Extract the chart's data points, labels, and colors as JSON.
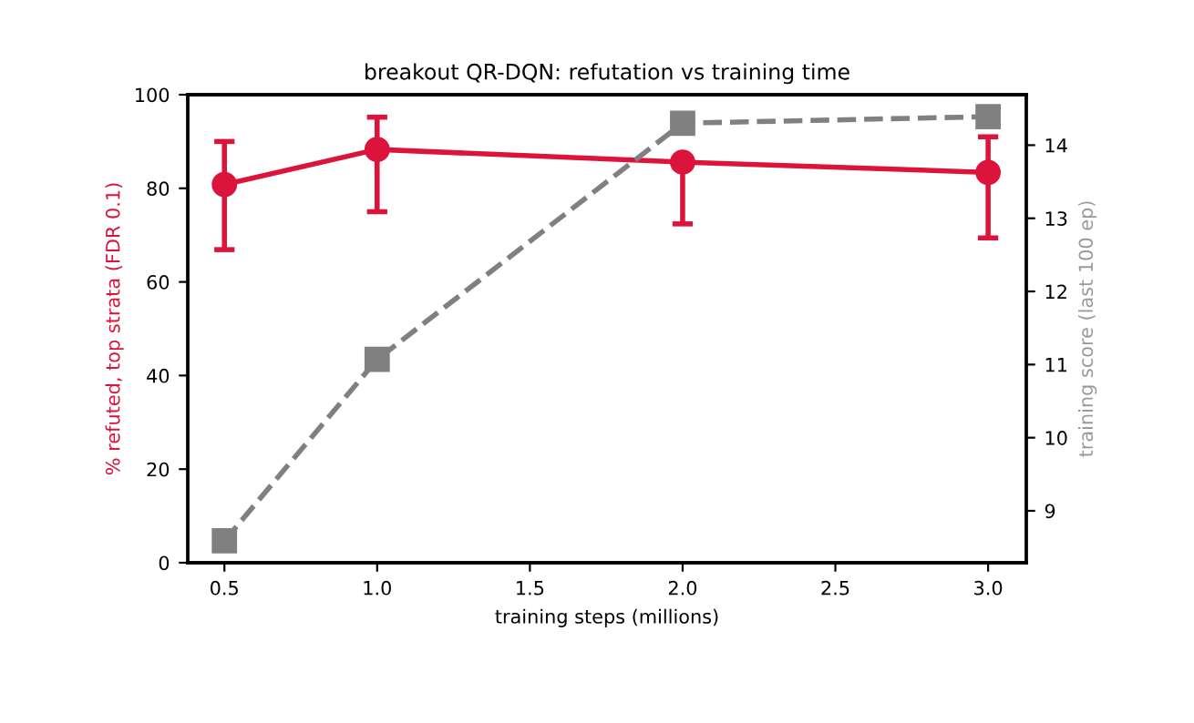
{
  "chart_data": {
    "type": "line",
    "title": "breakout QR-DQN: refutation vs training time",
    "xlabel": "training steps (millions)",
    "ylabel": "% refuted, top strata (FDR 0.1)",
    "y2label": "training score (last 100 ep)",
    "x": [
      0.5,
      1.0,
      2.0,
      3.0
    ],
    "series": [
      {
        "color": "#dc143c",
        "values": [
          80.8,
          88.3,
          85.6,
          83.4
        ],
        "errors": [
          [
            66.9,
            90.0
          ],
          [
            75.0,
            95.2
          ],
          [
            72.4,
            85.6
          ],
          [
            69.4,
            91
          ]
        ],
        "marker": "circle",
        "line_style": "solid"
      },
      {
        "color": "#808080",
        "values": [
          8.59,
          11.07,
          14.3,
          14.39
        ],
        "axis": "y2",
        "marker": "square",
        "line_style": "dashed"
      }
    ],
    "xlim": [
      0.38,
      3.125
    ],
    "xticks": [
      0.5,
      {
        "value": 1,
        "label": "1.0"
      },
      1.5,
      {
        "value": 2,
        "label": "2.0"
      },
      2.5,
      {
        "value": 3,
        "label": "3.0"
      }
    ],
    "ylim": [
      0,
      100
    ],
    "yticks": [
      0,
      20,
      40,
      60,
      80,
      100
    ],
    "y2lim": [
      8.29,
      14.69
    ],
    "y2ticks": [
      9,
      10,
      11,
      12,
      13,
      14
    ],
    "grid": false,
    "legend": false
  }
}
